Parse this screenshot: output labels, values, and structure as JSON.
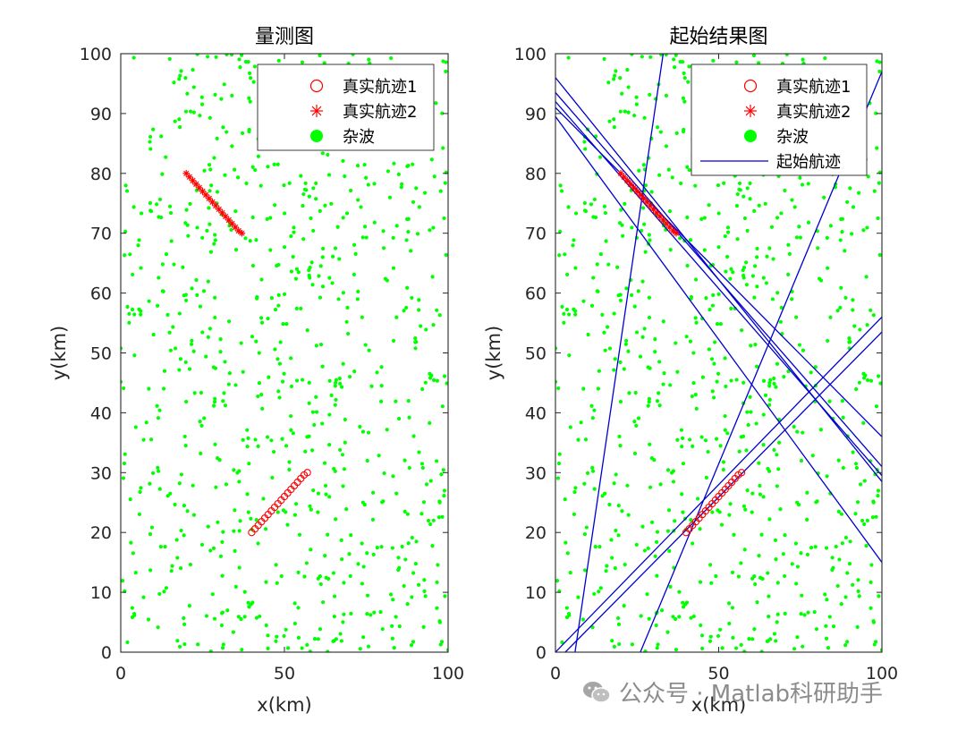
{
  "colors": {
    "clutter": "#00ff00",
    "track": "#ff0000",
    "start": "#0000cd",
    "axis": "#262626"
  },
  "watermark": "公众号 · Matlab科研助手",
  "chart_data": [
    {
      "type": "scatter",
      "title": "量测图",
      "xlabel": "x(km)",
      "ylabel": "y(km)",
      "xlim": [
        0,
        100
      ],
      "ylim": [
        0,
        100
      ],
      "xticks": [
        "0",
        "50",
        "100"
      ],
      "yticks": [
        "0",
        "10",
        "20",
        "30",
        "40",
        "50",
        "60",
        "70",
        "80",
        "90",
        "100"
      ],
      "grid": false,
      "legend_position": "top-right",
      "legend": [
        {
          "label": "真实航迹1",
          "marker": "circle"
        },
        {
          "label": "真实航迹2",
          "marker": "asterisk"
        },
        {
          "label": "杂波",
          "marker": "dot"
        }
      ],
      "series": [
        {
          "name": "真实航迹1",
          "marker": "circle",
          "x": [
            40,
            41,
            42,
            43,
            44,
            45,
            46,
            47,
            48,
            49,
            50,
            51,
            52,
            53,
            54,
            55,
            56,
            57
          ],
          "y": [
            20,
            20.6,
            21.2,
            21.8,
            22.4,
            23,
            23.6,
            24.2,
            24.8,
            25.4,
            26,
            26.6,
            27.2,
            27.8,
            28.4,
            29,
            29.6,
            30
          ]
        },
        {
          "name": "真实航迹2",
          "marker": "asterisk",
          "x": [
            20,
            21,
            22,
            23,
            24,
            25,
            26,
            27,
            28,
            29,
            30,
            31,
            32,
            33,
            34,
            35,
            36,
            37
          ],
          "y": [
            80,
            79.4,
            78.8,
            78.2,
            77.6,
            77,
            76.4,
            75.8,
            75.2,
            74.6,
            74,
            73.4,
            72.8,
            72.2,
            71.6,
            71,
            70.4,
            70
          ]
        },
        {
          "name": "杂波",
          "marker": "dot",
          "count": 800
        }
      ]
    },
    {
      "type": "scatter",
      "title": "起始结果图",
      "xlabel": "x(km)",
      "ylabel": "y(km)",
      "xlim": [
        0,
        100
      ],
      "ylim": [
        0,
        100
      ],
      "xticks": [
        "0",
        "50",
        "100"
      ],
      "yticks": [
        "0",
        "10",
        "20",
        "30",
        "40",
        "50",
        "60",
        "70",
        "80",
        "90",
        "100"
      ],
      "grid": false,
      "legend_position": "top-right",
      "legend": [
        {
          "label": "真实航迹1",
          "marker": "circle"
        },
        {
          "label": "真实航迹2",
          "marker": "asterisk"
        },
        {
          "label": "杂波",
          "marker": "dot"
        },
        {
          "label": "起始航迹",
          "marker": "line"
        }
      ],
      "series": [
        {
          "name": "真实航迹1",
          "marker": "circle",
          "x": [
            40,
            41,
            42,
            43,
            44,
            45,
            46,
            47,
            48,
            49,
            50,
            51,
            52,
            53,
            54,
            55,
            56,
            57
          ],
          "y": [
            20,
            20.6,
            21.2,
            21.8,
            22.4,
            23,
            23.6,
            24.2,
            24.8,
            25.4,
            26,
            26.6,
            27.2,
            27.8,
            28.4,
            29,
            29.6,
            30
          ]
        },
        {
          "name": "真实航迹2",
          "marker": "asterisk",
          "x": [
            20,
            21,
            22,
            23,
            24,
            25,
            26,
            27,
            28,
            29,
            30,
            31,
            32,
            33,
            34,
            35,
            36,
            37
          ],
          "y": [
            80,
            79.4,
            78.8,
            78.2,
            77.6,
            77,
            76.4,
            75.8,
            75.2,
            74.6,
            74,
            73.4,
            72.8,
            72.2,
            71.6,
            71,
            70.4,
            70
          ]
        },
        {
          "name": "杂波",
          "marker": "dot",
          "count": 800
        },
        {
          "name": "起始航迹",
          "marker": "line",
          "segments": [
            [
              [
                0,
                96
              ],
              [
                100,
                28.5
              ]
            ],
            [
              [
                0,
                93.5
              ],
              [
                100,
                31
              ]
            ],
            [
              [
                0,
                92
              ],
              [
                100,
                29.5
              ]
            ],
            [
              [
                0,
                91
              ],
              [
                100,
                36
              ]
            ],
            [
              [
                0,
                89.5
              ],
              [
                100,
                15
              ]
            ],
            [
              [
                0,
                0
              ],
              [
                100,
                56
              ]
            ],
            [
              [
                3,
                0
              ],
              [
                100,
                53.5
              ]
            ],
            [
              [
                6,
                0
              ],
              [
                33,
                100
              ]
            ],
            [
              [
                26,
                0
              ],
              [
                100,
                97
              ]
            ]
          ]
        }
      ]
    }
  ]
}
